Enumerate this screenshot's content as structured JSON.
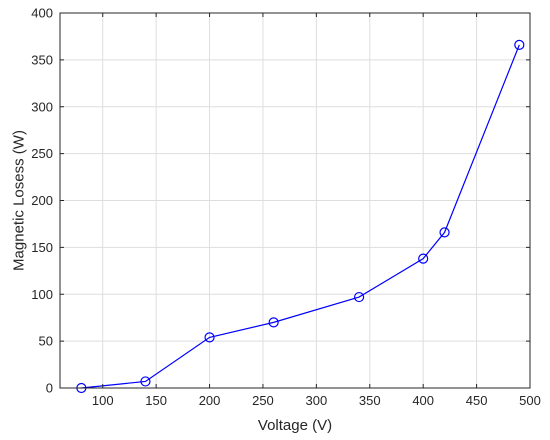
{
  "chart_data": {
    "type": "line",
    "title": "",
    "xlabel": "Voltage (V)",
    "ylabel": "Magnetic Losess (W)",
    "xlim": [
      60,
      500
    ],
    "ylim": [
      0,
      400
    ],
    "xticks": [
      100,
      150,
      200,
      250,
      300,
      350,
      400,
      450,
      500
    ],
    "yticks": [
      0,
      50,
      100,
      150,
      200,
      250,
      300,
      350,
      400
    ],
    "grid": true,
    "legend": "none",
    "marker": "circle",
    "color": "#0000ff",
    "series": [
      {
        "x": [
          80,
          140,
          200,
          260,
          340,
          400,
          420,
          490
        ],
        "y": [
          0,
          7,
          54,
          70,
          97,
          138,
          166,
          366
        ]
      }
    ]
  }
}
